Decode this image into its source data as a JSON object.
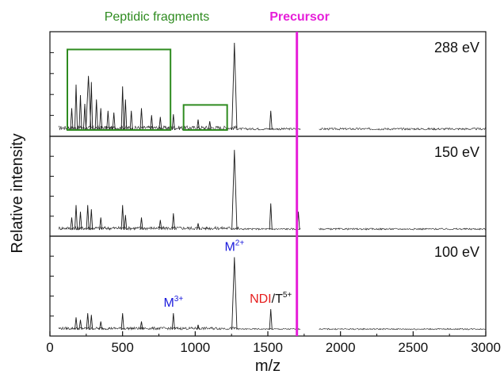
{
  "colors": {
    "axis": "#111111",
    "spectrum": "#1a1a1a",
    "precursor": "#e61fd9",
    "fragment_box": "#2e8b1f",
    "annotation_blue": "#1a1adc",
    "annotation_red": "#e61e1e"
  },
  "labels": {
    "peptidic_fragments": "Peptidic fragments",
    "precursor": "Precursor"
  },
  "chart_data": {
    "type": "line",
    "xlabel": "m/z",
    "ylabel": "Relative intensity",
    "xlim": [
      0,
      3000
    ],
    "x_ticks": [
      0,
      500,
      1000,
      1500,
      2000,
      2500,
      3000
    ],
    "x_tick_labels": [
      "0",
      "500",
      "1000",
      "1500",
      "2000",
      "2500",
      "3000"
    ],
    "precursor_mz": 1700,
    "fragment_regions": [
      {
        "x_range": [
          120,
          830
        ],
        "y_top": 0.83
      },
      {
        "x_range": [
          920,
          1220
        ],
        "y_top": 0.3
      }
    ],
    "panels": [
      {
        "energy_label": "288 eV",
        "noise_level": 0.03,
        "peaks": [
          {
            "mz": 150,
            "rel": 0.25
          },
          {
            "mz": 180,
            "rel": 0.52
          },
          {
            "mz": 210,
            "rel": 0.4
          },
          {
            "mz": 240,
            "rel": 0.3
          },
          {
            "mz": 265,
            "rel": 0.62
          },
          {
            "mz": 285,
            "rel": 0.55
          },
          {
            "mz": 320,
            "rel": 0.35
          },
          {
            "mz": 350,
            "rel": 0.25
          },
          {
            "mz": 400,
            "rel": 0.22
          },
          {
            "mz": 440,
            "rel": 0.2
          },
          {
            "mz": 500,
            "rel": 0.5
          },
          {
            "mz": 520,
            "rel": 0.35
          },
          {
            "mz": 560,
            "rel": 0.22
          },
          {
            "mz": 630,
            "rel": 0.25
          },
          {
            "mz": 700,
            "rel": 0.17
          },
          {
            "mz": 760,
            "rel": 0.15
          },
          {
            "mz": 850,
            "rel": 0.18
          },
          {
            "mz": 1020,
            "rel": 0.12
          },
          {
            "mz": 1100,
            "rel": 0.1
          },
          {
            "mz": 1270,
            "rel": 1.0
          },
          {
            "mz": 1520,
            "rel": 0.22
          }
        ]
      },
      {
        "energy_label": "150 eV",
        "noise_level": 0.025,
        "peaks": [
          {
            "mz": 150,
            "rel": 0.15
          },
          {
            "mz": 180,
            "rel": 0.3
          },
          {
            "mz": 210,
            "rel": 0.22
          },
          {
            "mz": 260,
            "rel": 0.3
          },
          {
            "mz": 285,
            "rel": 0.25
          },
          {
            "mz": 350,
            "rel": 0.15
          },
          {
            "mz": 500,
            "rel": 0.3
          },
          {
            "mz": 520,
            "rel": 0.18
          },
          {
            "mz": 630,
            "rel": 0.15
          },
          {
            "mz": 760,
            "rel": 0.12
          },
          {
            "mz": 850,
            "rel": 0.2
          },
          {
            "mz": 1020,
            "rel": 0.08
          },
          {
            "mz": 1270,
            "rel": 0.97
          },
          {
            "mz": 1520,
            "rel": 0.32
          },
          {
            "mz": 1710,
            "rel": 0.22
          }
        ]
      },
      {
        "energy_label": "100 eV",
        "noise_level": 0.02,
        "peaks": [
          {
            "mz": 180,
            "rel": 0.15
          },
          {
            "mz": 210,
            "rel": 0.12
          },
          {
            "mz": 260,
            "rel": 0.2
          },
          {
            "mz": 285,
            "rel": 0.18
          },
          {
            "mz": 350,
            "rel": 0.1
          },
          {
            "mz": 500,
            "rel": 0.2
          },
          {
            "mz": 630,
            "rel": 0.1
          },
          {
            "mz": 850,
            "rel": 0.2
          },
          {
            "mz": 1020,
            "rel": 0.06
          },
          {
            "mz": 1270,
            "rel": 0.88
          },
          {
            "mz": 1520,
            "rel": 0.25
          }
        ],
        "annotations": [
          {
            "base": "M",
            "sup": "2+",
            "mz": 1270
          },
          {
            "base": "M",
            "sup": "3+",
            "mz": 850
          },
          {
            "base_red": "NDI",
            "base": "/T",
            "sup": "5+",
            "mz": 1520
          }
        ]
      }
    ]
  }
}
